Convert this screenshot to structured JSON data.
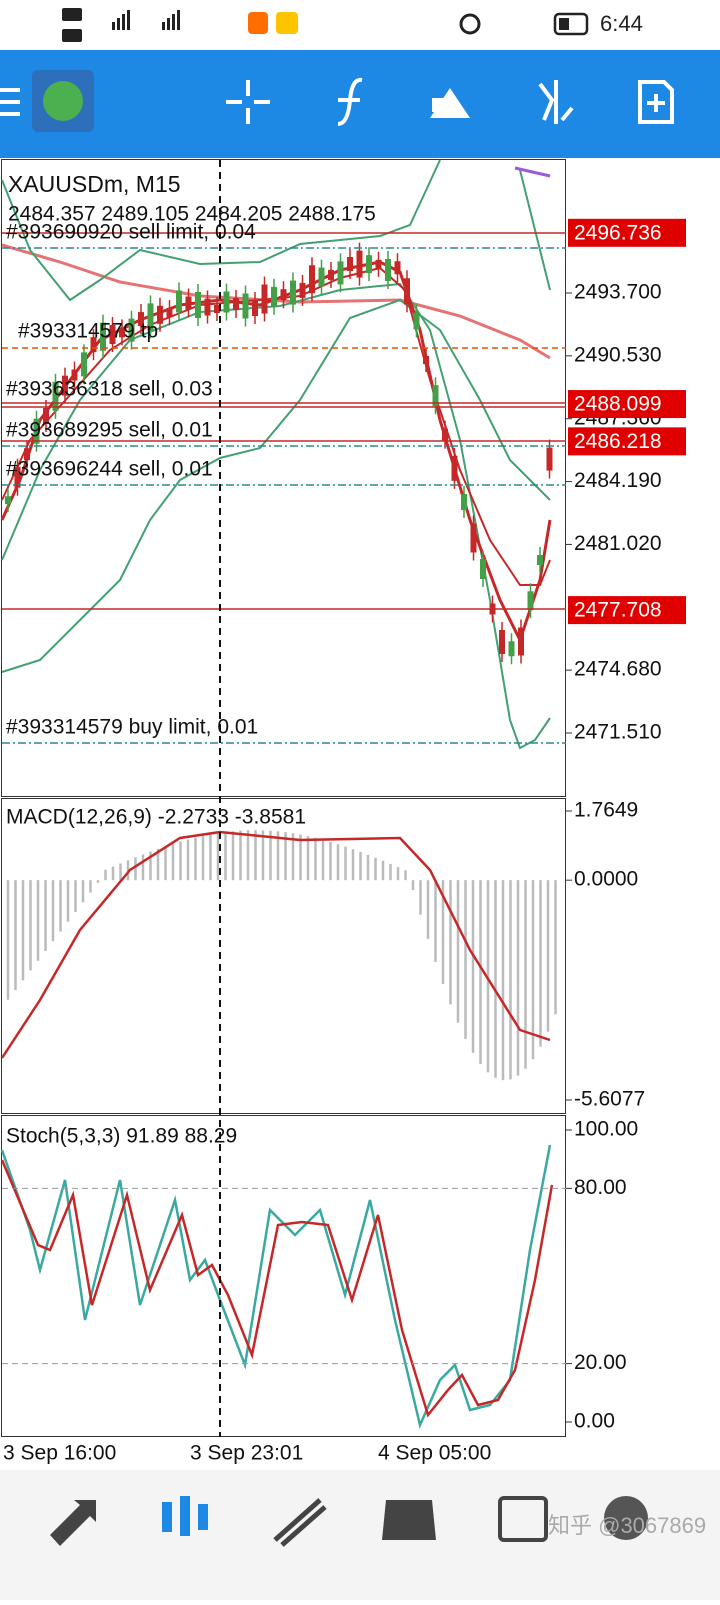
{
  "status_bar": {
    "time": "6:44"
  },
  "chart": {
    "symbol": "XAUUSDm, M15",
    "ohlc": "2484.357 2489.105 2484.205 2488.175",
    "price_ticks": [
      {
        "value": 2493.7,
        "label": "2493.700"
      },
      {
        "value": 2490.53,
        "label": "2490.530"
      },
      {
        "value": 2487.36,
        "label": "2487.360"
      },
      {
        "value": 2484.19,
        "label": "2484.190"
      },
      {
        "value": 2481.02,
        "label": "2481.020"
      },
      {
        "value": 2474.68,
        "label": "2474.680"
      },
      {
        "value": 2471.51,
        "label": "2471.510"
      }
    ],
    "price_labels": [
      2496.736,
      2488.099,
      2486.218,
      2477.708
    ],
    "orders": [
      "#393690920 sell limit, 0.04",
      "#393314579 tp",
      "#393636318 sell, 0.03",
      "#393689295 sell, 0.01",
      "#393696244 sell, 0.01",
      "#393314579 buy limit, 0.01"
    ]
  },
  "macd": {
    "title": "MACD(12,26,9) -2.2733 -3.8581",
    "ticks": [
      1.7649,
      {
        "value": 0,
        "label": "0.0000"
      },
      -5.6077
    ]
  },
  "stoch": {
    "title": "Stoch(5,3,3) 91.89 88.29",
    "ticks": [
      {
        "value": 100,
        "label": "100.00"
      },
      {
        "value": 80,
        "label": "80.00"
      },
      {
        "value": 20,
        "label": "20.00"
      },
      {
        "value": 0,
        "label": "0.00"
      }
    ],
    "levels": [
      80,
      20
    ]
  },
  "time_labels": [
    "3 Sep 16:00",
    "3 Sep 23:01",
    "4 Sep 05:00"
  ],
  "watermark": "知乎 @3067869"
}
